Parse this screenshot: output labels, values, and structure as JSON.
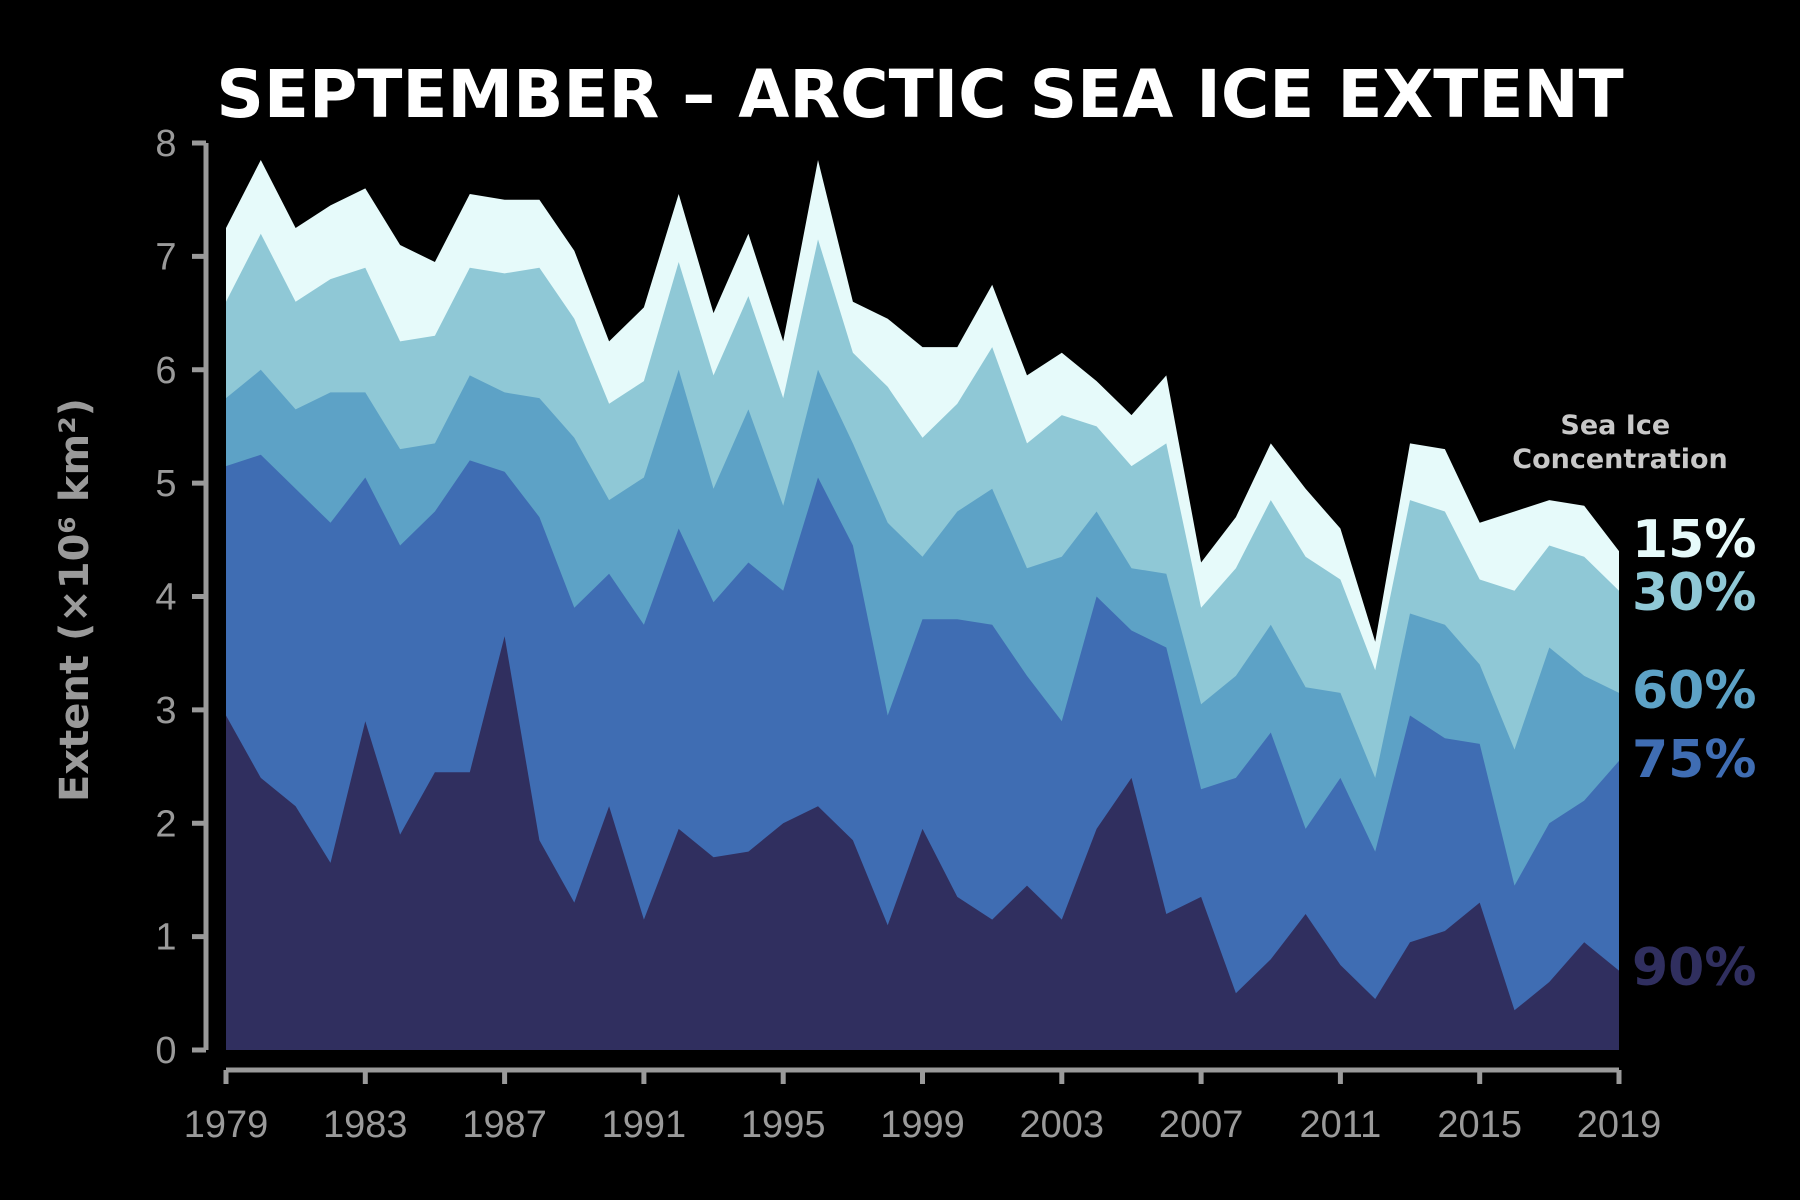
{
  "colors": {
    "background": "#000000",
    "axis": "#9a9a9a",
    "c15": "#e6fafa",
    "c30": "#8fc8d6",
    "c60": "#5da2c6",
    "c75": "#3f6db3",
    "c90": "#302f5f"
  },
  "chart_data": {
    "type": "area",
    "title": "SEPTEMBER – ARCTIC SEA ICE EXTENT",
    "ylabel": "Extent (×10⁶ km²)",
    "xlabel": "",
    "legend_title": "Sea Ice Concentration",
    "legend_placement": "right",
    "grid": false,
    "xlim": [
      1979,
      2019
    ],
    "ylim": [
      0,
      8
    ],
    "x_ticks": [
      "1979",
      "1983",
      "1987",
      "1991",
      "1995",
      "1999",
      "2003",
      "2007",
      "2011",
      "2015",
      "2019"
    ],
    "y_ticks": [
      "0",
      "1",
      "2",
      "3",
      "4",
      "5",
      "6",
      "7",
      "8"
    ],
    "x": [
      1979,
      1980,
      1981,
      1982,
      1983,
      1984,
      1985,
      1986,
      1987,
      1988,
      1989,
      1990,
      1991,
      1992,
      1993,
      1994,
      1995,
      1996,
      1997,
      1998,
      1999,
      2000,
      2001,
      2002,
      2003,
      2004,
      2005,
      2006,
      2007,
      2008,
      2009,
      2010,
      2011,
      2012,
      2013,
      2014,
      2015,
      2016,
      2017,
      2018,
      2019
    ],
    "series": [
      {
        "name": "15%",
        "color": "#e6fafa",
        "values": [
          7.25,
          7.85,
          7.25,
          7.45,
          7.6,
          7.1,
          6.95,
          7.55,
          7.5,
          7.5,
          7.05,
          6.25,
          6.55,
          7.55,
          6.5,
          7.2,
          6.25,
          7.85,
          6.6,
          6.45,
          6.2,
          6.2,
          6.75,
          5.95,
          6.15,
          5.9,
          5.6,
          5.95,
          4.3,
          4.7,
          5.35,
          4.95,
          4.6,
          3.6,
          5.35,
          5.3,
          4.65,
          4.75,
          4.85,
          4.8,
          4.4
        ]
      },
      {
        "name": "30%",
        "color": "#8fc8d6",
        "values": [
          6.6,
          7.2,
          6.6,
          6.8,
          6.9,
          6.25,
          6.3,
          6.9,
          6.85,
          6.9,
          6.45,
          5.7,
          5.9,
          6.95,
          5.95,
          6.65,
          5.75,
          7.15,
          6.15,
          5.85,
          5.4,
          5.7,
          6.2,
          5.35,
          5.6,
          5.5,
          5.15,
          5.35,
          3.9,
          4.25,
          4.85,
          4.35,
          4.15,
          3.35,
          4.85,
          4.75,
          4.15,
          4.05,
          4.45,
          4.35,
          4.05
        ]
      },
      {
        "name": "60%",
        "color": "#5da2c6",
        "values": [
          5.75,
          6.0,
          5.65,
          5.8,
          5.8,
          5.3,
          5.35,
          5.95,
          5.8,
          5.75,
          5.4,
          4.85,
          5.05,
          6.0,
          4.95,
          5.65,
          4.8,
          6.0,
          5.35,
          4.65,
          4.35,
          4.75,
          4.95,
          4.25,
          4.35,
          4.75,
          4.25,
          4.2,
          3.05,
          3.3,
          3.75,
          3.2,
          3.15,
          2.4,
          3.85,
          3.75,
          3.4,
          2.65,
          3.55,
          3.3,
          3.15
        ]
      },
      {
        "name": "75%",
        "color": "#3f6db3",
        "values": [
          5.15,
          5.25,
          4.95,
          4.65,
          5.05,
          4.45,
          4.75,
          5.2,
          5.1,
          4.7,
          3.9,
          4.2,
          3.75,
          4.6,
          3.95,
          4.3,
          4.05,
          5.05,
          4.45,
          2.95,
          3.8,
          3.8,
          3.75,
          3.3,
          2.9,
          4.0,
          3.7,
          3.55,
          2.3,
          2.4,
          2.8,
          1.95,
          2.4,
          1.75,
          2.95,
          2.75,
          2.7,
          1.45,
          2.0,
          2.2,
          2.55
        ]
      },
      {
        "name": "90%",
        "color": "#302f5f",
        "values": [
          2.95,
          2.4,
          2.15,
          1.65,
          2.9,
          1.9,
          2.45,
          2.45,
          3.65,
          1.85,
          1.3,
          2.15,
          1.15,
          1.95,
          1.7,
          1.75,
          2.0,
          2.15,
          1.85,
          1.1,
          1.95,
          1.35,
          1.15,
          1.45,
          1.15,
          1.95,
          2.4,
          1.2,
          1.35,
          0.5,
          0.8,
          1.2,
          0.75,
          0.45,
          0.95,
          1.05,
          1.3,
          0.35,
          0.6,
          0.95,
          0.7
        ]
      }
    ]
  }
}
